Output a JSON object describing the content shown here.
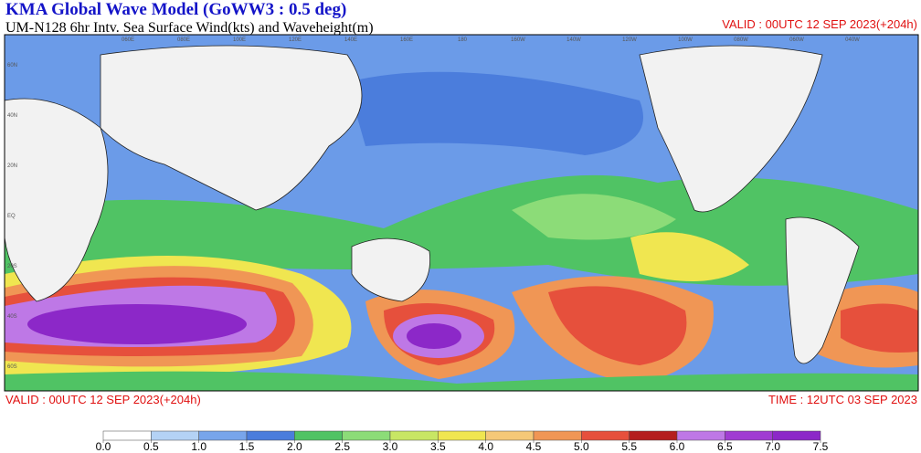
{
  "header": {
    "title": "KMA  Global Wave Model (GoWW3 : 0.5 deg)",
    "subtitle": "UM-N128  6hr Intv. Sea Surface Wind(kts) and Waveheight(m)",
    "valid_top": "VALID : 00UTC 12 SEP 2023(+204h)"
  },
  "footer": {
    "valid": "VALID : 00UTC 12 SEP 2023(+204h)",
    "time": "TIME : 12UTC 03 SEP 2023"
  },
  "map": {
    "lon_labels": [
      "060E",
      "080E",
      "100E",
      "120E",
      "140E",
      "160E",
      "180",
      "160W",
      "140W",
      "120W",
      "100W",
      "080W",
      "060W",
      "040W"
    ],
    "lat_labels": [
      "60N",
      "40N",
      "20N",
      "EQ",
      "20S",
      "40S",
      "60S"
    ]
  },
  "colorbar": {
    "colors": [
      "#ffffff",
      "#b4d2f5",
      "#78a5eb",
      "#4b7ddc",
      "#50c364",
      "#8cdc78",
      "#c8e664",
      "#f0e650",
      "#f5c878",
      "#f09655",
      "#e6503c",
      "#b41e1e",
      "#be78e6",
      "#a03cd2",
      "#8c28c8"
    ],
    "ticks": [
      {
        "value": 0,
        "label": "0.0"
      },
      0.5,
      {
        "value": 1,
        "label": "1.0"
      },
      1.5,
      {
        "value": 2,
        "label": "2.0"
      },
      2.5,
      {
        "value": 3,
        "label": "3.0"
      },
      3.5,
      {
        "value": 4,
        "label": "4.0"
      },
      4.5,
      {
        "value": 5,
        "label": "5.0"
      },
      5.5,
      {
        "value": 6,
        "label": "6.0"
      },
      6.5,
      {
        "value": 7,
        "label": "7.0"
      },
      7.5
    ]
  }
}
